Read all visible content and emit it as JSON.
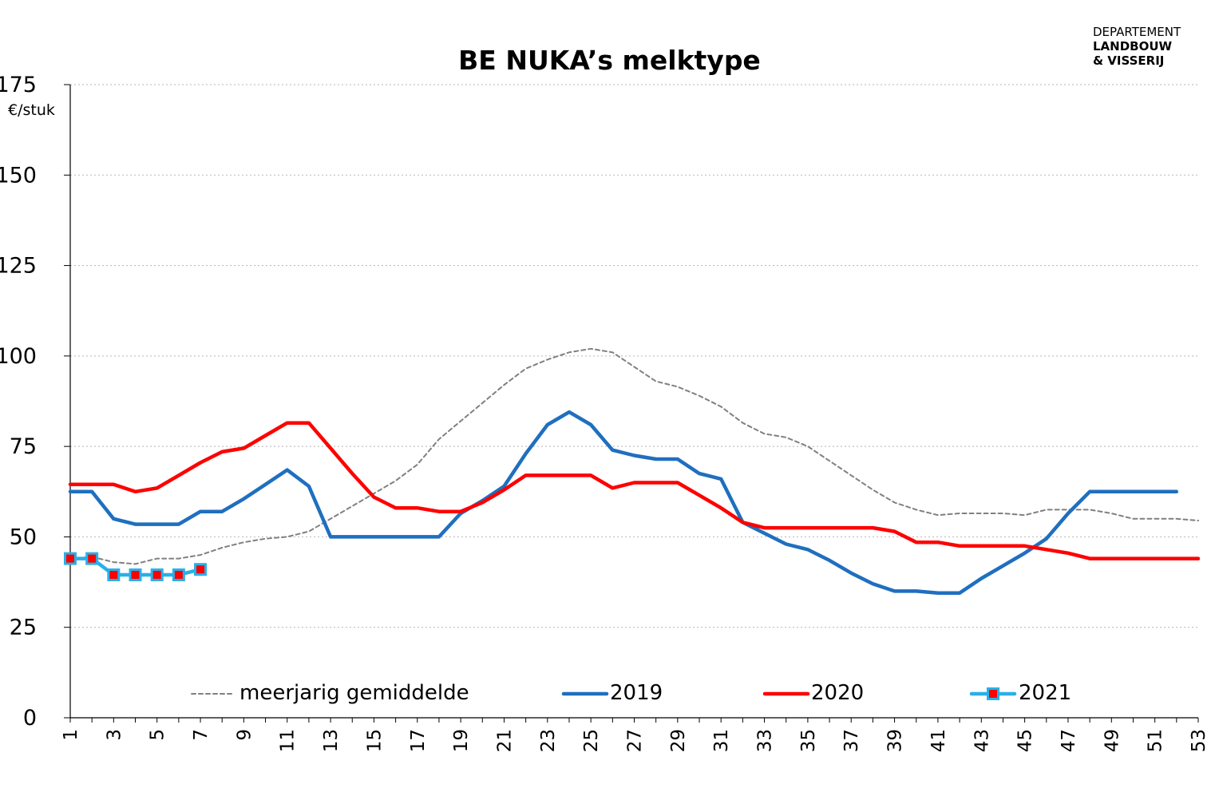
{
  "header": {
    "title": "BE NUKA’s melktype",
    "logo_line1": "DEPARTEMENT",
    "logo_line2": "LANDBOUW",
    "logo_line3": "& VISSERIJ"
  },
  "chart_data": {
    "type": "line",
    "title": "BE NUKA’s melktype",
    "ylabel": "€/stuk",
    "xlabel": "",
    "ylim": [
      0,
      175
    ],
    "yticks": [
      0,
      25,
      50,
      75,
      100,
      125,
      150,
      175
    ],
    "xlim": [
      1,
      53
    ],
    "xticks": [
      1,
      3,
      5,
      7,
      9,
      11,
      13,
      15,
      17,
      19,
      21,
      23,
      25,
      27,
      29,
      31,
      33,
      35,
      37,
      39,
      41,
      43,
      45,
      47,
      49,
      51,
      53
    ],
    "grid": "horizontal dashed",
    "legend_position": "bottom inside",
    "series": [
      {
        "name": "meerjarig gemiddelde",
        "color": "#808080",
        "style": "dashed",
        "x": [
          1,
          2,
          3,
          4,
          5,
          6,
          7,
          8,
          9,
          10,
          11,
          12,
          13,
          14,
          15,
          16,
          17,
          18,
          19,
          20,
          21,
          22,
          23,
          24,
          25,
          26,
          27,
          28,
          29,
          30,
          31,
          32,
          33,
          34,
          35,
          36,
          37,
          38,
          39,
          40,
          41,
          42,
          43,
          44,
          45,
          46,
          47,
          48,
          49,
          50,
          51,
          52,
          53
        ],
        "values": [
          44,
          44.5,
          43,
          42.5,
          44,
          44,
          45,
          47,
          48.5,
          49.5,
          50,
          51.5,
          55,
          58.5,
          62,
          65.5,
          70,
          77,
          82,
          87,
          92,
          96.5,
          99,
          101,
          102,
          101,
          97,
          93,
          91.5,
          89,
          86,
          81.5,
          78.5,
          77.5,
          75,
          71,
          67,
          63,
          59.5,
          57.5,
          56,
          56.5,
          56.5,
          56.5,
          56,
          57.5,
          57.5,
          57.5,
          56.5,
          55,
          55,
          55,
          54.5
        ]
      },
      {
        "name": "2019",
        "color": "#1f6fbf",
        "style": "solid",
        "x": [
          1,
          2,
          3,
          4,
          5,
          6,
          7,
          8,
          9,
          10,
          11,
          12,
          13,
          14,
          15,
          16,
          17,
          18,
          19,
          20,
          21,
          22,
          23,
          24,
          25,
          26,
          27,
          28,
          29,
          30,
          31,
          32,
          33,
          34,
          35,
          36,
          37,
          38,
          39,
          40,
          41,
          42,
          43,
          44,
          45,
          46,
          47,
          48,
          49,
          50,
          51,
          52
        ],
        "values": [
          62.5,
          62.5,
          55,
          53.5,
          53.5,
          53.5,
          57,
          57,
          60.5,
          64.5,
          68.5,
          64,
          50,
          50,
          50,
          50,
          50,
          50,
          56.5,
          60,
          64,
          73,
          81,
          84.5,
          81,
          74,
          72.5,
          71.5,
          71.5,
          67.5,
          66,
          54,
          51,
          48,
          46.5,
          43.5,
          40,
          37,
          35,
          35,
          34.5,
          34.5,
          38.5,
          42,
          45.5,
          49.5,
          56.5,
          62.5,
          62.5,
          62.5,
          62.5,
          62.5
        ]
      },
      {
        "name": "2020",
        "color": "#ff0000",
        "style": "solid",
        "x": [
          1,
          2,
          3,
          4,
          5,
          6,
          7,
          8,
          9,
          10,
          11,
          12,
          13,
          14,
          15,
          16,
          17,
          18,
          19,
          20,
          21,
          22,
          23,
          24,
          25,
          26,
          27,
          28,
          29,
          30,
          31,
          32,
          33,
          34,
          35,
          36,
          37,
          38,
          39,
          40,
          41,
          42,
          43,
          44,
          45,
          46,
          47,
          48,
          49,
          50,
          51,
          52,
          53
        ],
        "values": [
          64.5,
          64.5,
          64.5,
          62.5,
          63.5,
          67,
          70.5,
          73.5,
          74.5,
          78,
          81.5,
          81.5,
          74.5,
          67.5,
          61,
          58,
          58,
          57,
          57,
          59.5,
          63,
          67,
          67,
          67,
          67,
          63.5,
          65,
          65,
          65,
          61.5,
          58,
          54,
          52.5,
          52.5,
          52.5,
          52.5,
          52.5,
          52.5,
          51.5,
          48.5,
          48.5,
          47.5,
          47.5,
          47.5,
          47.5,
          46.5,
          45.5,
          44,
          44,
          44,
          44,
          44,
          44
        ]
      },
      {
        "name": "2021",
        "color": "#29b0e8",
        "marker_color": "#ff0000",
        "style": "solid-with-markers",
        "x": [
          1,
          2,
          3,
          4,
          5,
          6,
          7
        ],
        "values": [
          44,
          44,
          39.5,
          39.5,
          39.5,
          39.5,
          41
        ]
      }
    ]
  }
}
